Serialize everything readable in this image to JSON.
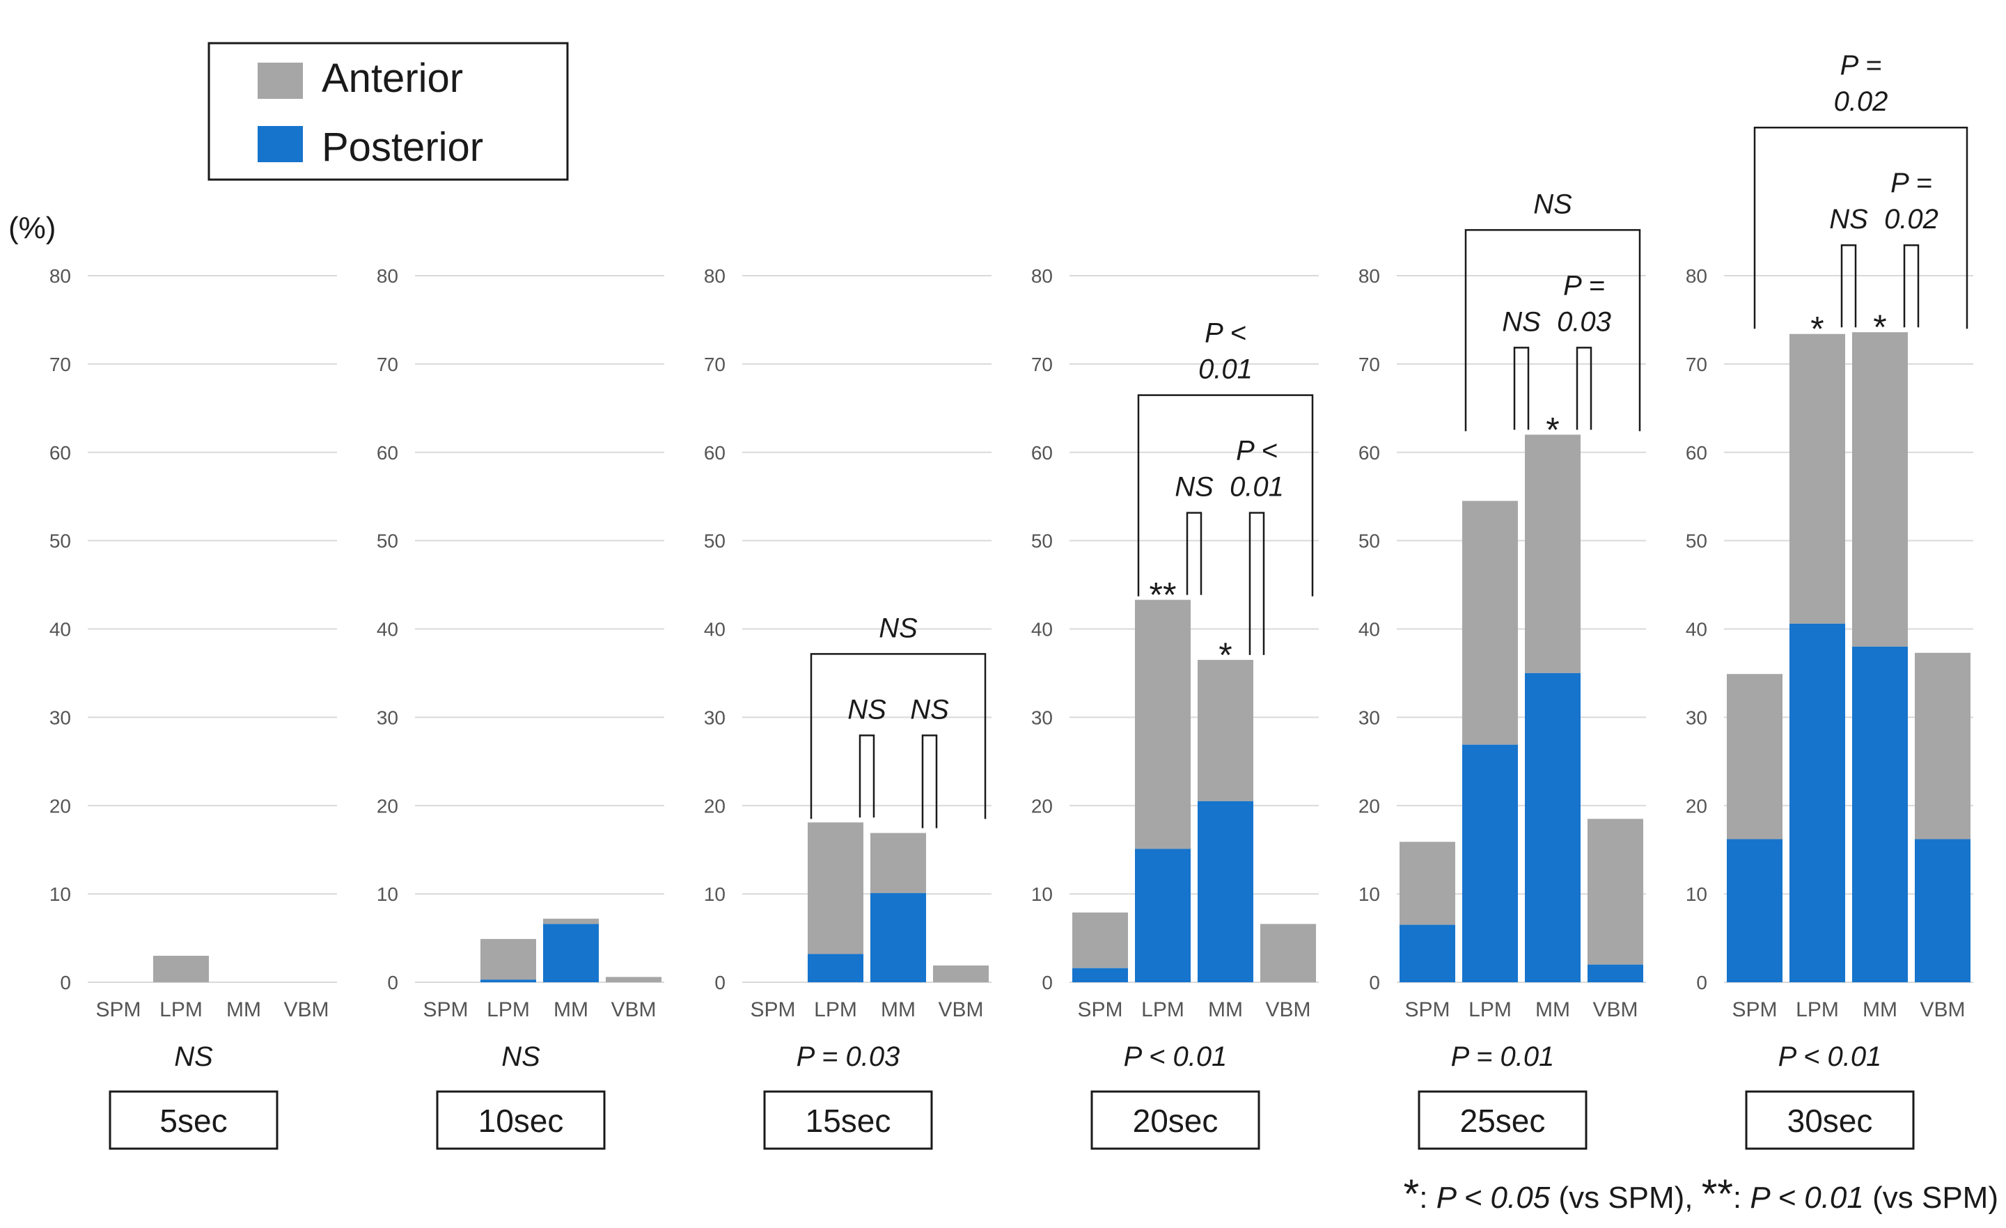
{
  "chart_data": {
    "type": "bar",
    "stacked": true,
    "y_unit_label": "(%)",
    "ylim": [
      0,
      80
    ],
    "yticks": [
      0,
      10,
      20,
      30,
      40,
      50,
      60,
      70,
      80
    ],
    "grid": true,
    "categories": [
      "SPM",
      "LPM",
      "MM",
      "VBM"
    ],
    "legend": {
      "position": "top-left",
      "entries": [
        {
          "name": "Anterior",
          "color": "#a6a6a6"
        },
        {
          "name": "Posterior",
          "color": "#1674cc"
        }
      ]
    },
    "panels": [
      {
        "label": "5sec",
        "test": "NS",
        "total": [
          0,
          3,
          0,
          0
        ],
        "posterior": [
          0,
          0,
          0,
          0
        ],
        "stars": [
          "",
          "",
          "",
          ""
        ],
        "brackets": []
      },
      {
        "label": "10sec",
        "test": "NS",
        "total": [
          0,
          4.9,
          7.2,
          0.6
        ],
        "posterior": [
          0,
          0.3,
          6.6,
          0
        ],
        "stars": [
          "",
          "",
          "",
          ""
        ],
        "brackets": []
      },
      {
        "label": "15sec",
        "test": "P = 0.03",
        "total": [
          0,
          18.1,
          16.9,
          1.9
        ],
        "posterior": [
          0,
          3.2,
          10.1,
          0
        ],
        "stars": [
          "",
          "",
          "",
          ""
        ],
        "brackets": [
          {
            "from": 1,
            "to": 2,
            "level": "low",
            "text": [
              "NS"
            ]
          },
          {
            "from": 2,
            "to": 3,
            "level": "low",
            "text": [
              "NS"
            ]
          },
          {
            "from": 1,
            "to": 3,
            "level": "high",
            "text": [
              "NS"
            ]
          }
        ]
      },
      {
        "label": "20sec",
        "test": "P < 0.01",
        "total": [
          7.9,
          43.3,
          36.5,
          6.6
        ],
        "posterior": [
          1.6,
          15.1,
          20.5,
          0
        ],
        "stars": [
          "",
          "**",
          "*",
          ""
        ],
        "brackets": [
          {
            "from": 1,
            "to": 2,
            "level": "low",
            "text": [
              "NS"
            ]
          },
          {
            "from": 2,
            "to": 3,
            "level": "low",
            "text": [
              "P <",
              "0.01"
            ]
          },
          {
            "from": 1,
            "to": 3,
            "level": "high",
            "text": [
              "P <",
              "0.01"
            ]
          }
        ]
      },
      {
        "label": "25sec",
        "test": "P = 0.01",
        "total": [
          15.9,
          54.5,
          62.0,
          18.5
        ],
        "posterior": [
          6.5,
          26.9,
          35.0,
          2.0
        ],
        "stars": [
          "",
          "",
          "*",
          ""
        ],
        "brackets": [
          {
            "from": 1,
            "to": 2,
            "level": "low",
            "text": [
              "NS"
            ]
          },
          {
            "from": 2,
            "to": 3,
            "level": "low",
            "text": [
              "P =",
              "0.03"
            ]
          },
          {
            "from": 1,
            "to": 3,
            "level": "high",
            "text": [
              "NS"
            ]
          }
        ]
      },
      {
        "label": "30sec",
        "test": "P < 0.01",
        "total": [
          34.9,
          73.4,
          73.6,
          37.3
        ],
        "posterior": [
          16.2,
          40.6,
          38.0,
          16.2
        ],
        "stars": [
          "",
          "*",
          "*",
          ""
        ],
        "brackets": [
          {
            "from": 1,
            "to": 2,
            "level": "low",
            "text": [
              "NS"
            ]
          },
          {
            "from": 2,
            "to": 3,
            "level": "low",
            "text": [
              "P =",
              "0.02"
            ]
          },
          {
            "from": 0,
            "to": 3,
            "level": "high",
            "text": [
              "P =",
              "0.02"
            ]
          }
        ]
      }
    ],
    "footnote": {
      "single_mark": "*",
      "single_p": "P < 0.05",
      "single_ref": "(vs SPM),",
      "double_mark": "**",
      "double_p": "P < 0.01",
      "double_ref": "(vs SPM)"
    }
  }
}
